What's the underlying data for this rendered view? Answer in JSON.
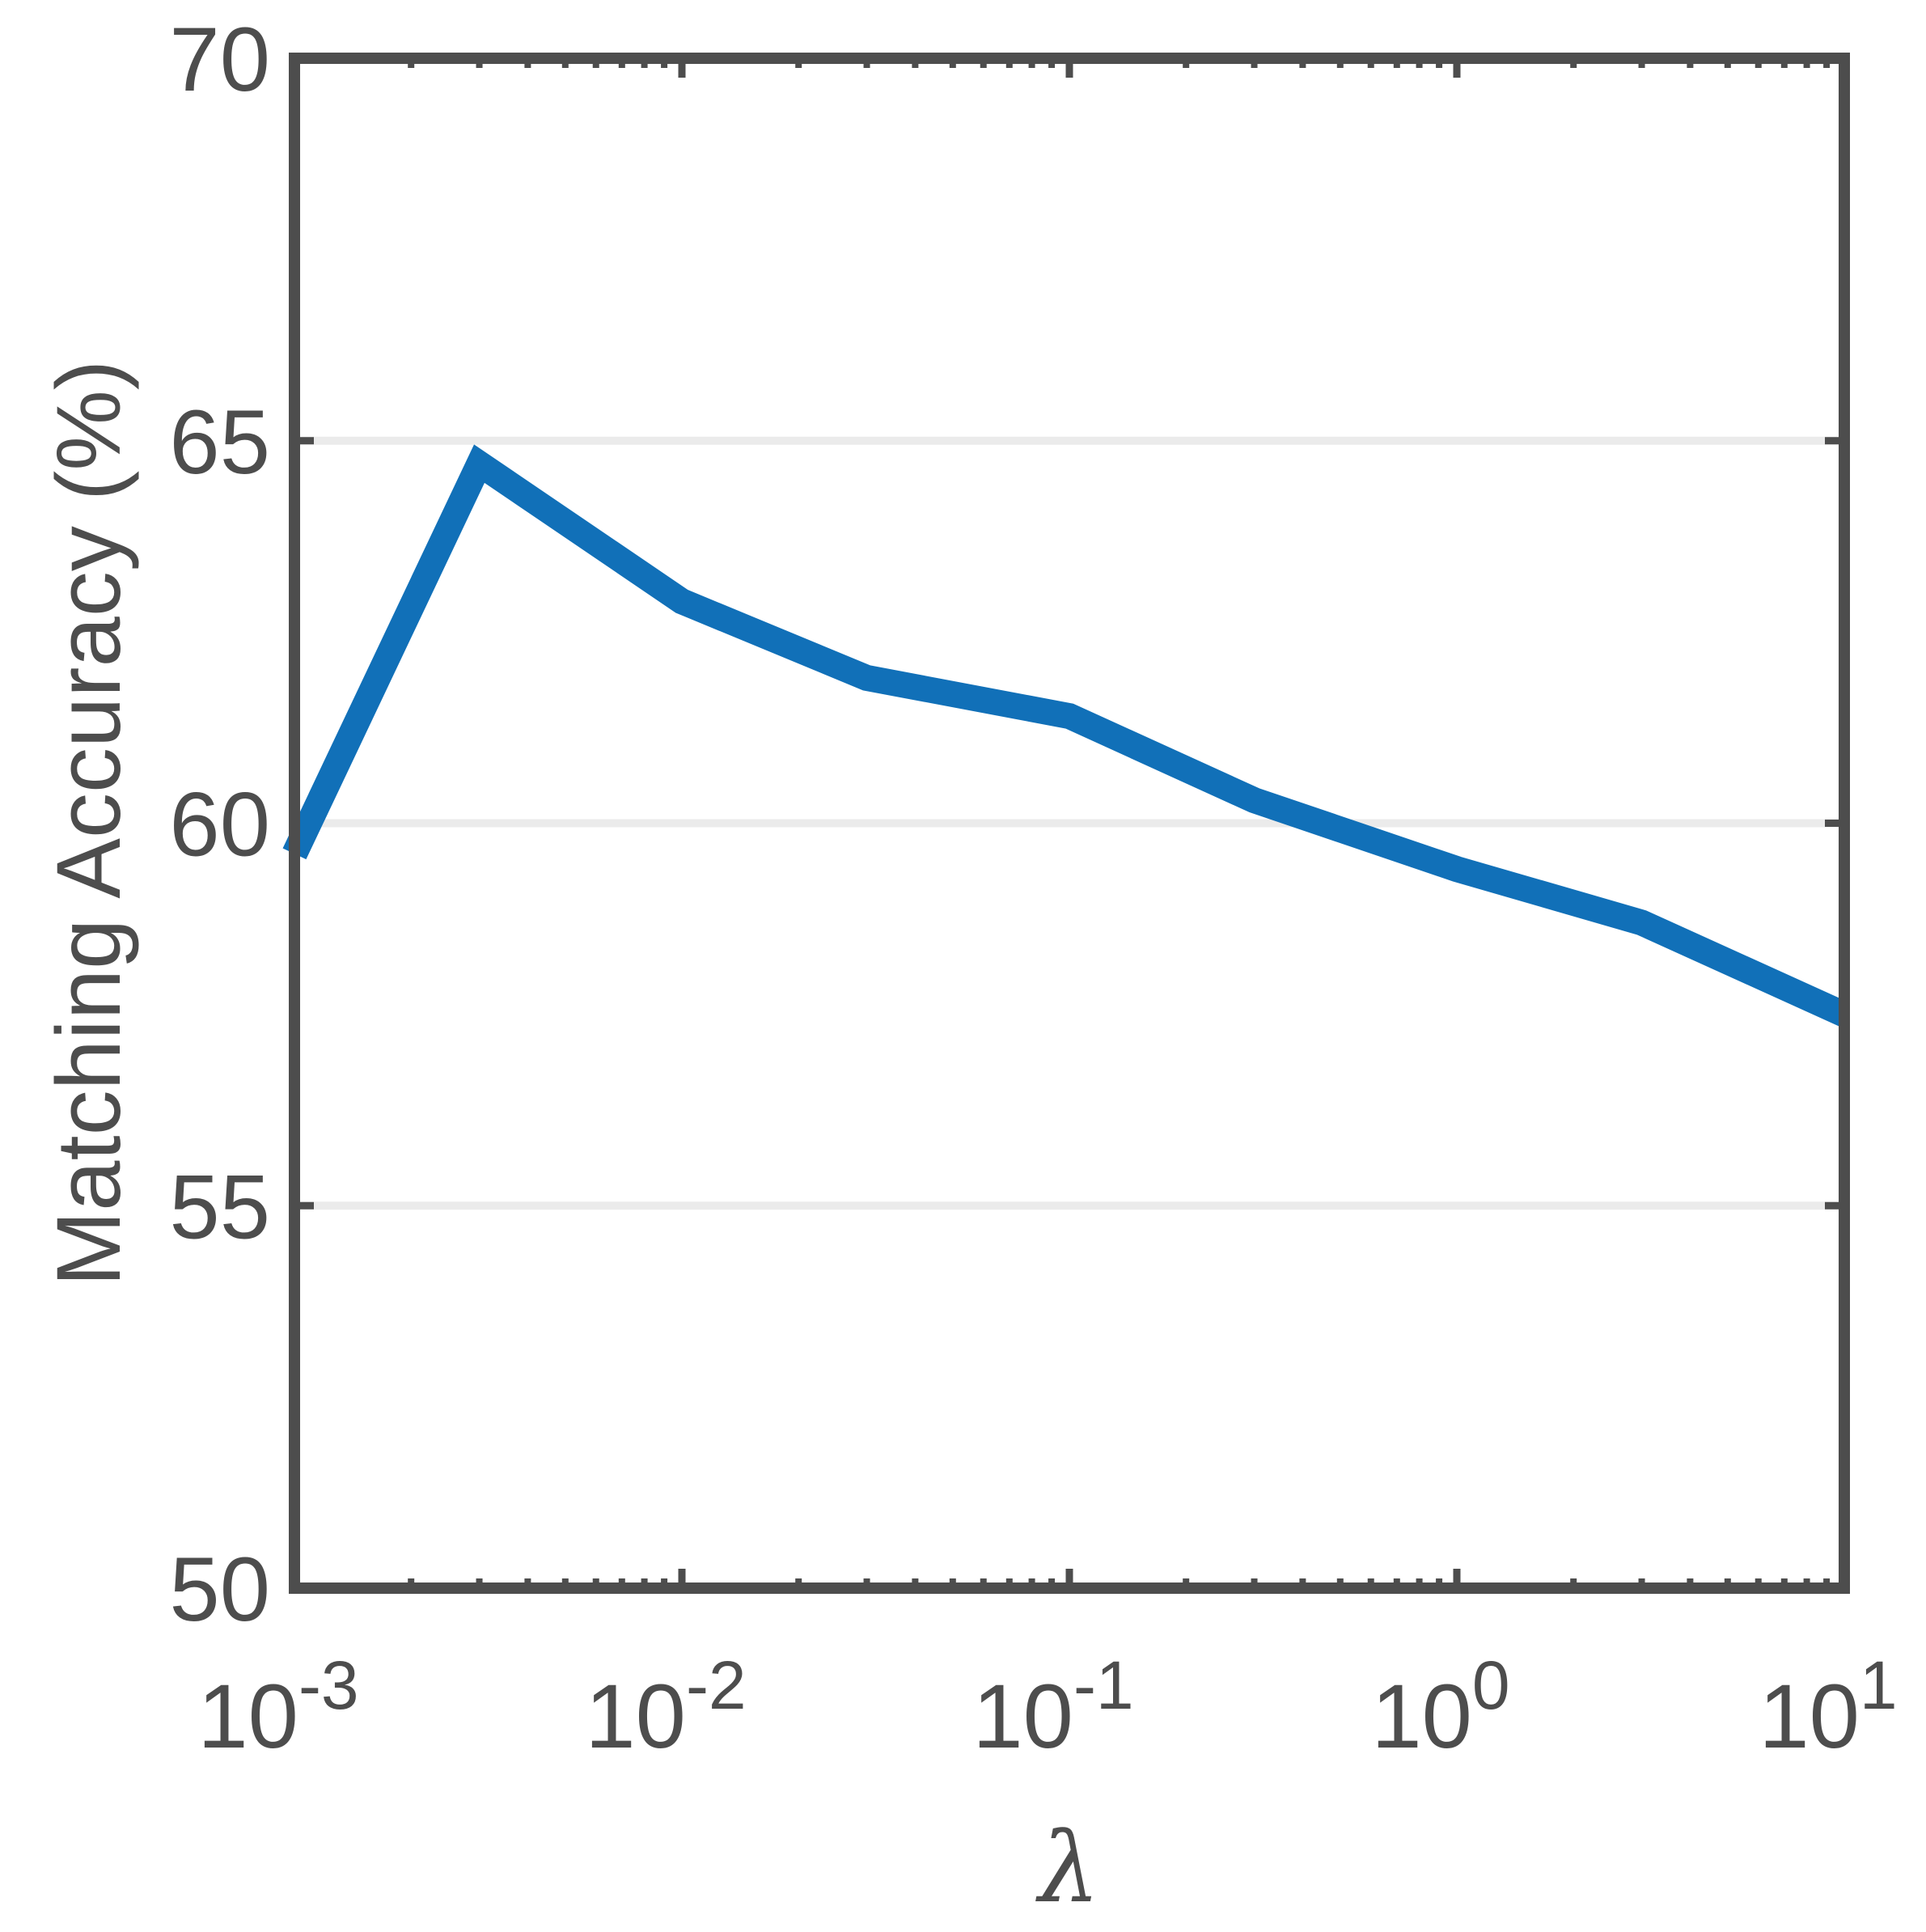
{
  "chart_data": {
    "type": "line",
    "xscale": "log",
    "xlabel": "λ",
    "ylabel": "Matching Accuracy (%)",
    "xlim": [
      0.001,
      10
    ],
    "ylim": [
      50,
      70
    ],
    "grid": "horizontal",
    "x_ticks": [
      {
        "value": 0.001,
        "base": "10",
        "exp": "-3"
      },
      {
        "value": 0.01,
        "base": "10",
        "exp": "-2"
      },
      {
        "value": 0.1,
        "base": "10",
        "exp": "-1"
      },
      {
        "value": 1,
        "base": "10",
        "exp": "0"
      },
      {
        "value": 10,
        "base": "10",
        "exp": "1"
      }
    ],
    "y_ticks": [
      "50",
      "55",
      "60",
      "65",
      "70"
    ],
    "series": [
      {
        "color": "#1170b8",
        "x": [
          0.001,
          0.003,
          0.01,
          0.03,
          0.1,
          0.3,
          1,
          3,
          10
        ],
        "y": [
          59.6,
          64.7,
          62.9,
          61.9,
          61.4,
          60.3,
          59.4,
          58.7,
          57.5
        ]
      }
    ],
    "colors": {
      "axis": "#4d4d4d",
      "grid": "#ebebeb",
      "line": "#1170b8"
    }
  }
}
